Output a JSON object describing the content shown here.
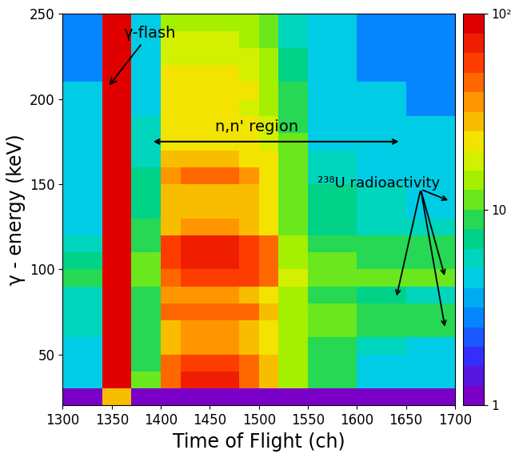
{
  "chart_data": {
    "type": "heatmap",
    "x_label": "Time of Flight (ch)",
    "y_label": "γ - energy (keV)",
    "xlim": [
      1300,
      1700
    ],
    "ylim": [
      20,
      250
    ],
    "xticks": [
      1300,
      1350,
      1400,
      1450,
      1500,
      1550,
      1600,
      1650,
      1700
    ],
    "yticks": [
      50,
      100,
      150,
      200,
      250
    ],
    "x_edges": [
      1300,
      1340,
      1370,
      1400,
      1420,
      1450,
      1480,
      1500,
      1520,
      1550,
      1600,
      1650,
      1700
    ],
    "y_edges": [
      20,
      30,
      40,
      50,
      60,
      70,
      80,
      90,
      100,
      110,
      120,
      130,
      140,
      150,
      160,
      170,
      180,
      190,
      200,
      210,
      220,
      230,
      240,
      250
    ],
    "cells": [
      [
        1,
        30,
        1,
        1,
        1,
        1,
        1,
        1,
        1,
        1,
        1,
        1
      ],
      [
        4,
        100,
        10,
        40,
        70,
        70,
        50,
        30,
        15,
        8,
        5,
        4
      ],
      [
        4,
        100,
        9,
        40,
        60,
        60,
        45,
        30,
        14,
        8,
        5,
        4
      ],
      [
        5,
        100,
        8,
        30,
        35,
        35,
        30,
        25,
        13,
        8,
        6,
        5
      ],
      [
        6,
        100,
        9,
        30,
        35,
        35,
        30,
        25,
        13,
        10,
        8,
        8
      ],
      [
        6,
        100,
        9,
        40,
        45,
        45,
        40,
        30,
        14,
        10,
        8,
        8
      ],
      [
        6,
        100,
        8,
        35,
        35,
        35,
        30,
        25,
        13,
        8,
        7,
        6
      ],
      [
        8,
        100,
        10,
        50,
        60,
        60,
        55,
        40,
        16,
        12,
        10,
        10
      ],
      [
        7,
        100,
        10,
        60,
        70,
        70,
        60,
        45,
        15,
        10,
        9,
        9
      ],
      [
        6,
        100,
        9,
        60,
        70,
        70,
        60,
        45,
        14,
        9,
        8,
        8
      ],
      [
        5,
        100,
        8,
        30,
        35,
        35,
        30,
        25,
        12,
        7,
        6,
        6
      ],
      [
        5,
        100,
        7,
        30,
        30,
        30,
        28,
        22,
        11,
        7,
        6,
        5
      ],
      [
        5,
        100,
        7,
        30,
        30,
        30,
        28,
        22,
        11,
        7,
        6,
        5
      ],
      [
        5,
        100,
        7,
        35,
        40,
        40,
        35,
        25,
        11,
        6,
        5,
        5
      ],
      [
        4,
        100,
        6,
        28,
        28,
        28,
        25,
        20,
        10,
        6,
        5,
        4
      ],
      [
        4,
        100,
        6,
        25,
        25,
        25,
        22,
        18,
        10,
        5,
        4,
        4
      ],
      [
        5,
        100,
        6,
        22,
        22,
        22,
        20,
        16,
        9,
        5,
        4,
        4
      ],
      [
        4,
        100,
        5,
        20,
        20,
        20,
        18,
        15,
        8,
        5,
        4,
        3
      ],
      [
        4,
        100,
        5,
        22,
        22,
        22,
        20,
        15,
        8,
        4,
        4,
        3
      ],
      [
        3,
        100,
        5,
        20,
        20,
        20,
        18,
        14,
        7,
        4,
        3,
        3
      ],
      [
        3,
        100,
        5,
        18,
        18,
        18,
        16,
        13,
        7,
        4,
        3,
        3
      ],
      [
        3,
        100,
        4,
        16,
        16,
        16,
        15,
        12,
        6,
        4,
        3,
        3
      ],
      [
        3,
        100,
        4,
        15,
        15,
        15,
        14,
        11,
        6,
        4,
        3,
        3
      ]
    ],
    "colorbar": {
      "range": [
        1,
        100
      ],
      "log": true,
      "ticks": [
        1,
        10,
        {
          "value": 100,
          "label": "10²"
        }
      ]
    },
    "annotations": [
      {
        "text": "γ-flash"
      },
      {
        "text": "n,n' region"
      },
      {
        "text": "²³⁸U radioactivity"
      }
    ]
  }
}
